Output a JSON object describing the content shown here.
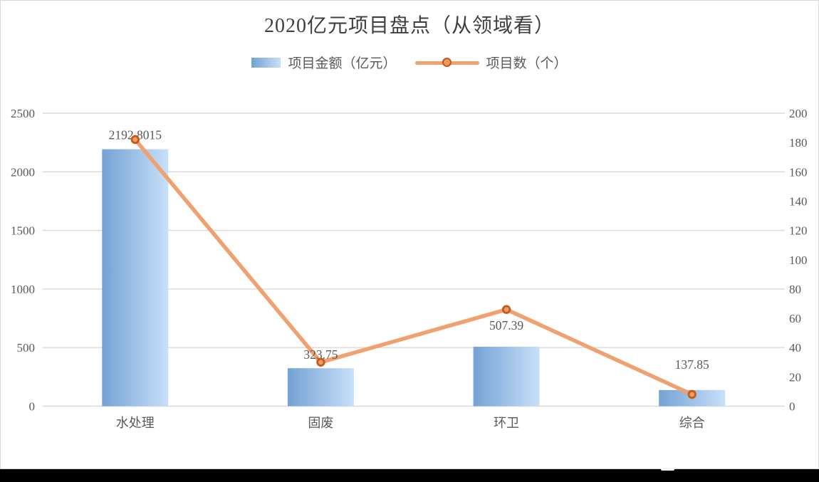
{
  "chart_data": {
    "type": "bar+line",
    "title": "2020亿元项目盘点（从领域看）",
    "categories": [
      "水处理",
      "固废",
      "环卫",
      "综合"
    ],
    "series": [
      {
        "name": "项目金额（亿元）",
        "type": "bar",
        "axis": "left",
        "values": [
          2192.8015,
          323.75,
          507.39,
          137.85
        ],
        "labels": [
          "2192.8015",
          "323.75",
          "507.39",
          "137.85"
        ]
      },
      {
        "name": "项目数（个）",
        "type": "line",
        "axis": "right",
        "values": [
          182,
          30,
          66,
          8
        ]
      }
    ],
    "left_axis": {
      "min": 0,
      "max": 2500,
      "step": 500,
      "ticks": [
        "0",
        "500",
        "1000",
        "1500",
        "2000",
        "2500"
      ]
    },
    "right_axis": {
      "min": 0,
      "max": 200,
      "step": 20,
      "ticks": [
        "0",
        "20",
        "40",
        "60",
        "80",
        "100",
        "120",
        "140",
        "160",
        "180",
        "200"
      ]
    },
    "grid": true,
    "legend_position": "top",
    "colors": {
      "bar_gradient_start": "#74a2d4",
      "bar_gradient_end": "#c8e0f9",
      "line": "#f0a170",
      "marker_fill": "#eb9c5f",
      "marker_ring": "#c45a1b",
      "gridline": "#d9d9d9",
      "axis_text": "#595959",
      "title_text": "#3f3f3f",
      "background": "#ffffff",
      "frame_bar": "#000000"
    }
  }
}
